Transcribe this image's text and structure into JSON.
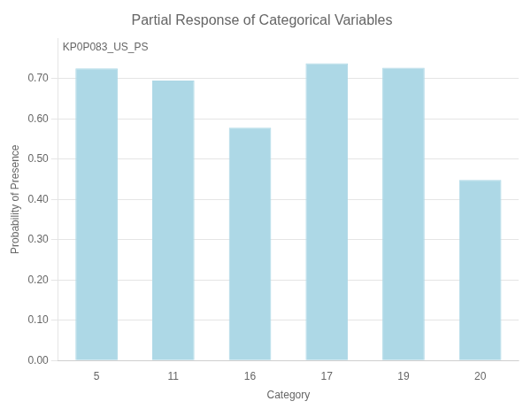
{
  "chart_data": {
    "type": "bar",
    "title": "Partial Response of Categorical Variables",
    "xlabel": "Category",
    "ylabel": "Probability of Presence",
    "categories": [
      "5",
      "11",
      "16",
      "17",
      "19",
      "20"
    ],
    "values": [
      0.725,
      0.695,
      0.578,
      0.738,
      0.727,
      0.448
    ],
    "color": "#add8e6",
    "annotation": "KP0P083_US_PS",
    "ylim": [
      0,
      0.8
    ],
    "yticks": [
      {
        "value": 0,
        "label": "0.00"
      },
      {
        "value": 0.1,
        "label": "0.10"
      },
      {
        "value": 0.2,
        "label": "0.20"
      },
      {
        "value": 0.3,
        "label": "0.30"
      },
      {
        "value": 0.4,
        "label": "0.40"
      },
      {
        "value": 0.5,
        "label": "0.50"
      },
      {
        "value": 0.6,
        "label": "0.60"
      },
      {
        "value": 0.7,
        "label": "0.70"
      }
    ],
    "grid": true
  }
}
